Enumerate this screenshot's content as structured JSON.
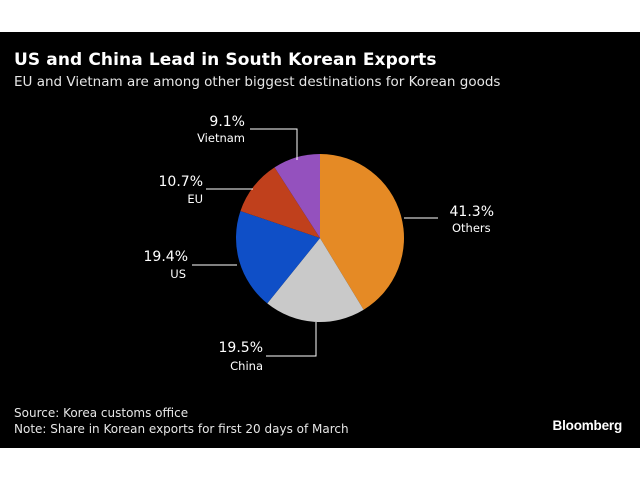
{
  "header": {
    "title": "US and China Lead in South Korean Exports",
    "subtitle": "EU and Vietnam are among other biggest destinations for Korean goods"
  },
  "footer": {
    "source": "Source: Korea customs office",
    "note": "Note: Share in Korean exports for first 20 days of March",
    "brand": "Bloomberg"
  },
  "chart_data": {
    "type": "pie",
    "title": "US and China Lead in South Korean Exports",
    "subtitle": "EU and Vietnam are among other biggest destinations for Korean goods",
    "unit": "%",
    "slices": [
      {
        "label": "Others",
        "value": 41.3,
        "value_label": "41.3%",
        "color": "#e58a25"
      },
      {
        "label": "China",
        "value": 19.5,
        "value_label": "19.5%",
        "color": "#c9c9c9"
      },
      {
        "label": "US",
        "value": 19.4,
        "value_label": "19.4%",
        "color": "#0f4fc7"
      },
      {
        "label": "EU",
        "value": 10.7,
        "value_label": "10.7%",
        "color": "#c0401c"
      },
      {
        "label": "Vietnam",
        "value": 9.1,
        "value_label": "9.1%",
        "color": "#9451be"
      }
    ]
  }
}
